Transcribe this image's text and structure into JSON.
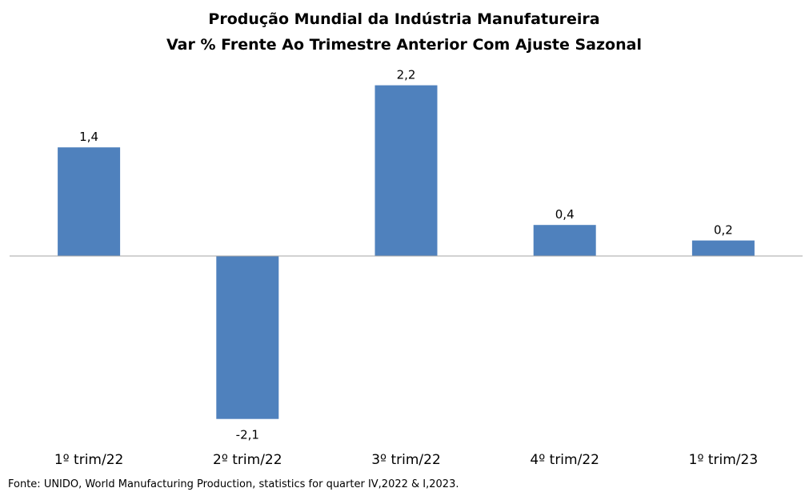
{
  "chart_data": {
    "type": "bar",
    "title_lines": [
      "Produção Mundial da Indústria Manufatureira",
      "Var % Frente Ao Trimestre Anterior Com Ajuste Sazonal"
    ],
    "categories": [
      "1º trim/22",
      "2º trim/22",
      "3º trim/22",
      "4º trim/22",
      "1º trim/23"
    ],
    "values": [
      1.4,
      -2.1,
      2.2,
      0.4,
      0.2
    ],
    "value_labels": [
      "1,4",
      "-2,1",
      "2,2",
      "0,4",
      "0,2"
    ],
    "xlabel": "",
    "ylabel": "",
    "ylim": [
      -2.3,
      2.4
    ],
    "bar_color": "#4F81BD",
    "axis_color": "#A6A6A6",
    "grid": false,
    "legend": "none"
  },
  "source": "Fonte: UNIDO, World Manufacturing Production,  statistics for quarter IV,2022 & I,2023."
}
